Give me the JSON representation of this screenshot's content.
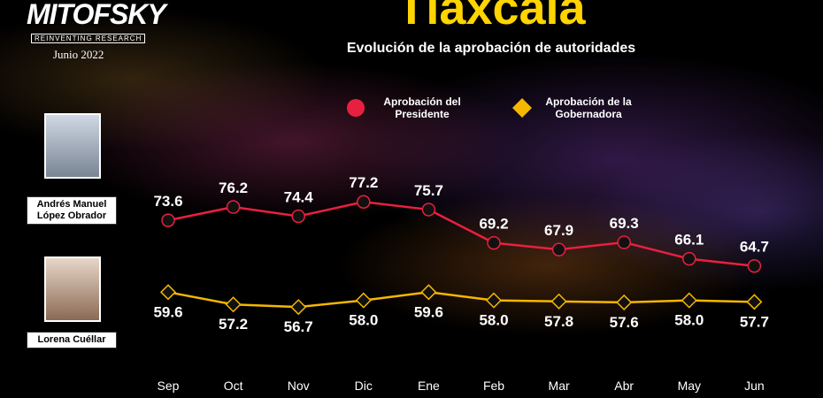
{
  "brand": {
    "name": "MITOFSKY",
    "tagline": "REINVENTING RESEARCH",
    "date": "Junio 2022"
  },
  "people": [
    "Andrés Manuel López Obrador",
    "Lorena Cuéllar"
  ],
  "chart_data": {
    "type": "line",
    "title": "Tlaxcala",
    "subtitle": "Evolución de la aprobación de autoridades",
    "categories": [
      "Sep",
      "Oct",
      "Nov",
      "Dic",
      "Ene",
      "Feb",
      "Mar",
      "Abr",
      "May",
      "Jun"
    ],
    "ylim": [
      50,
      90
    ],
    "series": [
      {
        "name": "Aprobación del Presidente",
        "color": "#e8203f",
        "marker": "circle",
        "values": [
          73.6,
          76.2,
          74.4,
          77.2,
          75.7,
          69.2,
          67.9,
          69.3,
          66.1,
          64.7
        ],
        "value_labels": [
          "73.6",
          "76.2",
          "74.4",
          "77.2",
          "75.7",
          "69.2",
          "67.9",
          "69.3",
          "66.1",
          "64.7"
        ]
      },
      {
        "name": "Aprobación de la Gobernadora",
        "color": "#f6b700",
        "marker": "diamond",
        "values": [
          59.6,
          57.2,
          56.7,
          58,
          59.6,
          58,
          57.8,
          57.6,
          58,
          57.7
        ],
        "value_labels": [
          "59.6",
          "57.2",
          "56.7",
          "58.0",
          "59.6",
          "58.0",
          "57.8",
          "57.6",
          "58.0",
          "57.7"
        ]
      }
    ]
  }
}
